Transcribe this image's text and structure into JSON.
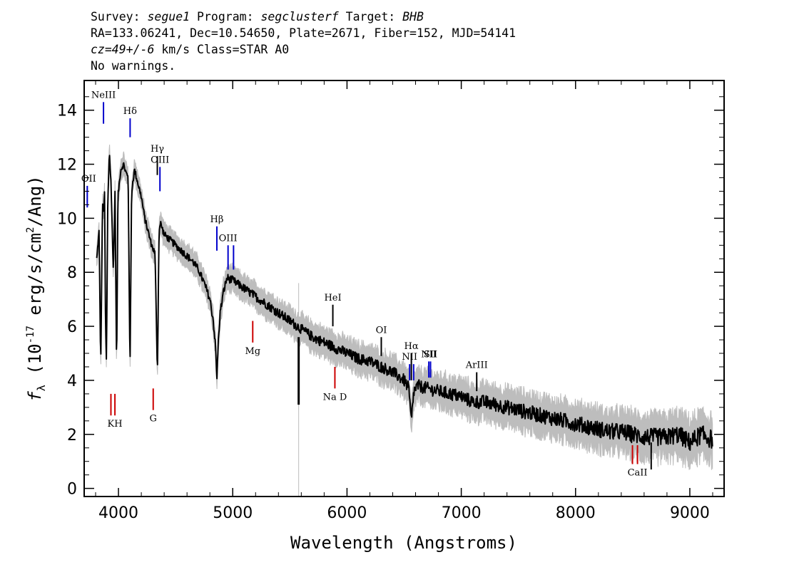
{
  "header": {
    "line1": {
      "survey_label": "Survey: ",
      "survey": "segue1",
      "program_label": " Program: ",
      "program": "segclusterf",
      "target_label": " Target: ",
      "target": "BHB"
    },
    "line2": "RA=133.06241, Dec=10.54650, Plate=2671, Fiber=152, MJD=54141",
    "line3": {
      "cz": "cz=49+/-6",
      "rest": " km/s Class=STAR A0"
    },
    "line4": "No warnings."
  },
  "colors": {
    "flux": "#000000",
    "error": "#bdbdbd",
    "emission": "#0000cc",
    "absorption": "#cc0000",
    "sky": "#000000"
  },
  "chart_data": {
    "type": "line",
    "xlabel": "Wavelength (Angstroms)",
    "ylabel": "f_λ (10^-17 erg/s/cm^2/Ang)",
    "ylabel_parts": {
      "f": "f",
      "sub": "λ",
      "pre": " (10",
      "exp1": "-17",
      "mid": " erg/s/cm",
      "exp2": "2",
      "post": "/Ang)"
    },
    "xlim": [
      3700,
      9300
    ],
    "ylim": [
      -0.3,
      15.1
    ],
    "x_ticks": [
      4000,
      5000,
      6000,
      7000,
      8000,
      9000
    ],
    "y_ticks": [
      0,
      2,
      4,
      6,
      8,
      10,
      12,
      14
    ],
    "grid": false,
    "series": [
      {
        "role": "flux",
        "x": [
          3810,
          3830,
          3845,
          3860,
          3870,
          3878,
          3886,
          3895,
          3905,
          3920,
          3935,
          3955,
          3970,
          3984,
          3995,
          4020,
          4045,
          4065,
          4085,
          4101,
          4115,
          4140,
          4170,
          4200,
          4230,
          4260,
          4290,
          4320,
          4341,
          4355,
          4370,
          4400,
          4450,
          4500,
          4550,
          4600,
          4650,
          4700,
          4750,
          4800,
          4830,
          4850,
          4861,
          4872,
          4890,
          4920,
          4950,
          5000,
          5100,
          5200,
          5300,
          5400,
          5500,
          5600,
          5700,
          5800,
          5900,
          6000,
          6100,
          6200,
          6300,
          6400,
          6500,
          6540,
          6563,
          6585,
          6620,
          6700,
          6800,
          6900,
          7000,
          7100,
          7200,
          7300,
          7400,
          7500,
          7600,
          7700,
          7800,
          7900,
          8000,
          8100,
          8200,
          8300,
          8400,
          8500,
          8600,
          8700,
          8800,
          8900,
          9000,
          9100,
          9200
        ],
        "y": [
          8.5,
          9.5,
          4.5,
          10.5,
          10.2,
          11.0,
          6.5,
          4.5,
          10.2,
          12.5,
          11.3,
          8.0,
          11.0,
          4.3,
          10.8,
          11.8,
          12.0,
          11.7,
          11.5,
          4.3,
          11.0,
          11.8,
          11.3,
          10.8,
          10.0,
          9.5,
          9.0,
          8.7,
          4.2,
          9.6,
          9.8,
          9.4,
          9.2,
          9.0,
          8.8,
          8.6,
          8.4,
          8.1,
          7.6,
          7.0,
          6.2,
          5.2,
          4.0,
          5.3,
          6.5,
          7.3,
          7.8,
          7.7,
          7.4,
          7.1,
          6.8,
          6.5,
          6.2,
          5.9,
          5.6,
          5.4,
          5.2,
          5.0,
          4.8,
          4.7,
          4.5,
          4.3,
          4.0,
          3.7,
          2.5,
          3.6,
          3.8,
          3.7,
          3.6,
          3.5,
          3.4,
          3.2,
          3.2,
          3.1,
          3.0,
          2.9,
          2.8,
          2.7,
          2.6,
          2.5,
          2.4,
          2.3,
          2.2,
          2.1,
          2.1,
          2.0,
          1.9,
          1.9,
          1.9,
          2.0,
          1.7,
          2.0,
          1.8
        ]
      },
      {
        "role": "sky",
        "x": [
          5577
        ],
        "y": [
          5.6
        ]
      }
    ],
    "emission_lines": [
      {
        "name": "NeIII",
        "label": "NeIII",
        "x": 3869,
        "y_top": 14.3,
        "y_bottom": 13.5
      },
      {
        "name": "OII",
        "label": "OII",
        "x": 3727,
        "y_top": 11.2,
        "y_bottom": 10.4
      },
      {
        "name": "Hdelta",
        "label": "Hδ",
        "x": 4102,
        "y_top": 13.7,
        "y_bottom": 13.0
      },
      {
        "name": "Hgamma",
        "label": "Hγ",
        "x": 4340,
        "y_top": 12.3,
        "y_bottom": 11.6,
        "color": "black"
      },
      {
        "name": "OIII-4363",
        "label": "OIII",
        "x": 4363,
        "y_top": 11.9,
        "y_bottom": 11.0
      },
      {
        "name": "Hbeta",
        "label": "Hβ",
        "x": 4861,
        "y_top": 9.7,
        "y_bottom": 8.8
      },
      {
        "name": "OIII-4959",
        "label": "OIII",
        "x": 4959,
        "y_top": 9.0,
        "y_bottom": 8.1
      },
      {
        "name": "OIII-5007",
        "label": "",
        "x": 5007,
        "y_top": 9.0,
        "y_bottom": 8.1
      },
      {
        "name": "HeI",
        "label": "HeI",
        "x": 5876,
        "y_top": 6.8,
        "y_bottom": 6.0,
        "color": "black"
      },
      {
        "name": "OI",
        "label": "OI",
        "x": 6300,
        "y_top": 5.6,
        "y_bottom": 4.9,
        "color": "black"
      },
      {
        "name": "NII-6548",
        "label": "NII",
        "x": 6548,
        "y_top": 4.6,
        "y_bottom": 4.0
      },
      {
        "name": "Halpha",
        "label": "Hα",
        "x": 6563,
        "y_top": 5.0,
        "y_bottom": 4.0,
        "color": "black"
      },
      {
        "name": "NII-6583",
        "label": "",
        "x": 6583,
        "y_top": 4.6,
        "y_bottom": 4.0
      },
      {
        "name": "SII-6716",
        "label": "NII",
        "x": 6716,
        "y_top": 4.7,
        "y_bottom": 4.1
      },
      {
        "name": "SII-6731",
        "label": "SII",
        "x": 6731,
        "y_top": 4.7,
        "y_bottom": 4.1
      },
      {
        "name": "ArIII",
        "label": "ArIII",
        "x": 7135,
        "y_top": 4.3,
        "y_bottom": 3.6,
        "color": "black"
      }
    ],
    "absorption_lines": [
      {
        "name": "K",
        "label": "",
        "x": 3934,
        "y_top": 3.5,
        "y_bottom": 2.7
      },
      {
        "name": "H",
        "label": "KH",
        "x": 3969,
        "y_top": 3.5,
        "y_bottom": 2.7
      },
      {
        "name": "G",
        "label": "G",
        "x": 4304,
        "y_top": 3.7,
        "y_bottom": 2.9
      },
      {
        "name": "Mg",
        "label": "Mg",
        "x": 5175,
        "y_top": 6.2,
        "y_bottom": 5.4
      },
      {
        "name": "NaD",
        "label": "Na D",
        "x": 5894,
        "y_top": 4.5,
        "y_bottom": 3.7
      },
      {
        "name": "CaII-8498",
        "label": "",
        "x": 8498,
        "y_top": 1.6,
        "y_bottom": 0.9
      },
      {
        "name": "CaII-8542",
        "label": "CaII",
        "x": 8542,
        "y_top": 1.6,
        "y_bottom": 0.9
      },
      {
        "name": "CaII-8662",
        "label": "",
        "x": 8662,
        "y_top": 1.7,
        "y_bottom": 0.7,
        "color": "black"
      }
    ]
  }
}
